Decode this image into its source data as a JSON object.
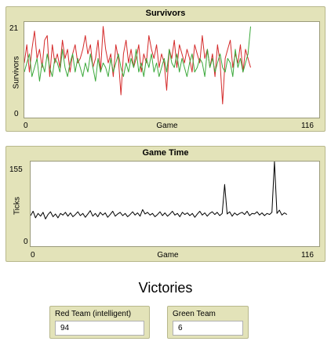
{
  "plots": {
    "survivors": {
      "title": "Survivors",
      "ylabel": "Survivors",
      "xlabel": "Game",
      "ymax_label": "21",
      "ymin_label": "0",
      "xmin_label": "0",
      "xmax_label": "116"
    },
    "game_time": {
      "title": "Game Time",
      "ylabel": "Ticks",
      "xlabel": "Game",
      "ymax_label": "155",
      "ymin_label": "0",
      "xmin_label": "0",
      "xmax_label": "116"
    }
  },
  "victories": {
    "title": "Victories",
    "red_label": "Red Team (intelligent)",
    "red_value": "94",
    "green_label": "Green Team",
    "green_value": "6"
  },
  "chart_data": [
    {
      "type": "line",
      "title": "Survivors",
      "xlabel": "Game",
      "ylabel": "Survivors",
      "xlim": [
        0,
        116
      ],
      "ylim": [
        0,
        21
      ],
      "series": [
        {
          "color": "#d42a2a",
          "values": [
            12,
            16,
            10,
            15,
            19,
            13,
            15,
            11,
            17,
            18,
            9,
            16,
            12,
            14,
            11,
            17,
            13,
            15,
            10,
            14,
            16,
            12,
            13,
            15,
            18,
            14,
            16,
            11,
            13,
            17,
            10,
            20,
            15,
            12,
            14,
            9,
            16,
            13,
            5,
            14,
            17,
            12,
            15,
            11,
            13,
            16,
            10,
            14,
            12,
            18,
            15,
            13,
            16,
            11,
            14,
            12,
            6,
            15,
            13,
            17,
            11,
            16,
            14,
            12,
            15,
            13,
            10,
            16,
            14,
            12,
            18,
            13,
            15,
            11,
            14,
            9,
            16,
            12,
            3,
            13,
            15,
            17,
            11,
            14,
            12,
            16,
            10,
            15,
            13,
            11
          ]
        },
        {
          "color": "#3aa83a",
          "values": [
            10,
            12,
            14,
            9,
            11,
            13,
            8,
            12,
            10,
            14,
            11,
            9,
            13,
            12,
            10,
            15,
            11,
            9,
            12,
            14,
            10,
            13,
            11,
            9,
            12,
            10,
            14,
            11,
            8,
            13,
            10,
            12,
            11,
            9,
            13,
            10,
            12,
            14,
            11,
            9,
            12,
            10,
            13,
            11,
            15,
            10,
            12,
            9,
            13,
            11,
            14,
            10,
            12,
            9,
            11,
            13,
            10,
            15,
            12,
            11,
            14,
            10,
            13,
            11,
            9,
            12,
            14,
            10,
            11,
            13,
            12,
            9,
            15,
            11,
            13,
            10,
            12,
            14,
            11,
            10,
            13,
            12,
            9,
            15,
            11,
            13,
            10,
            12,
            14,
            20
          ]
        }
      ]
    },
    {
      "type": "line",
      "title": "Game Time",
      "xlabel": "Game",
      "ylabel": "Ticks",
      "xlim": [
        0,
        116
      ],
      "ylim": [
        0,
        155
      ],
      "series": [
        {
          "color": "#000000",
          "values": [
            56,
            64,
            52,
            60,
            55,
            62,
            50,
            58,
            63,
            54,
            59,
            52,
            60,
            57,
            62,
            55,
            61,
            54,
            58,
            63,
            56,
            60,
            53,
            59,
            65,
            55,
            60,
            54,
            62,
            57,
            61,
            53,
            58,
            64,
            55,
            59,
            62,
            56,
            60,
            54,
            58,
            63,
            57,
            61,
            55,
            67,
            59,
            62,
            57,
            60,
            54,
            58,
            63,
            56,
            61,
            55,
            59,
            64,
            57,
            60,
            54,
            62,
            58,
            61,
            56,
            60,
            53,
            59,
            64,
            57,
            61,
            55,
            60,
            63,
            58,
            62,
            56,
            60,
            113,
            59,
            63,
            55,
            61,
            57,
            60,
            62,
            58,
            64,
            56,
            60,
            59,
            63,
            57,
            61,
            56,
            60,
            58,
            62,
            155,
            60,
            66,
            57,
            61,
            58
          ]
        }
      ]
    }
  ]
}
